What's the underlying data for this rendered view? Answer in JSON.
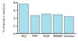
{
  "chart_data": {
    "type": "bar",
    "y_label": "% chimeras in amplicon",
    "categories": [
      "HQ",
      "FST",
      "R44",
      "ENSH",
      "Uchime"
    ],
    "values": [
      7.6,
      4.6,
      5.0,
      4.8,
      4.3
    ],
    "color": "#a8dfec",
    "ylim": [
      0,
      8
    ],
    "yticks": [
      0,
      2,
      4,
      6,
      8
    ]
  }
}
